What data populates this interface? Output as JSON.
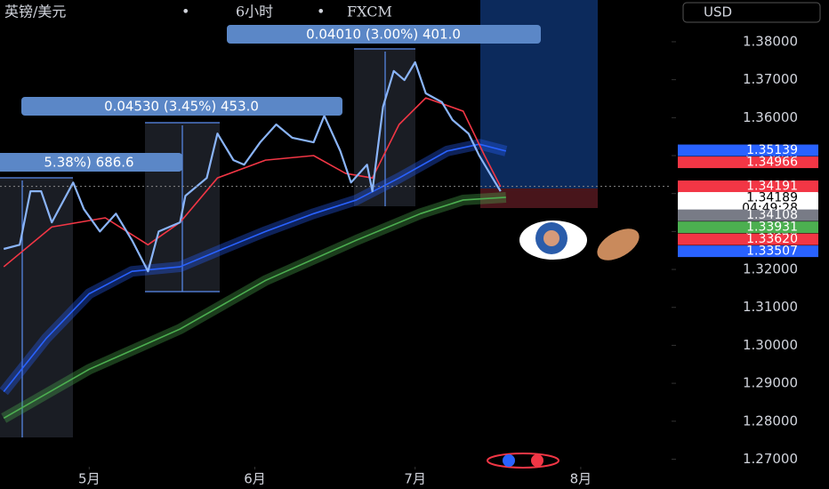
{
  "header": {
    "title": [
      "英镑/美元",
      "6小时",
      "FXCM"
    ],
    "separator": "•",
    "currency": "USD"
  },
  "chart_data": {
    "type": "line",
    "xlim": [
      -16.7,
      109
    ],
    "ylim": [
      1.268,
      1.391
    ],
    "xticks": [
      {
        "value": 0,
        "label": "5月"
      },
      {
        "value": 31,
        "label": "6月"
      },
      {
        "value": 61,
        "label": "7月"
      },
      {
        "value": 92,
        "label": "8月"
      }
    ],
    "yticks": [
      {
        "value": 1.27,
        "label": "1.27000"
      },
      {
        "value": 1.28,
        "label": "1.28000"
      },
      {
        "value": 1.29,
        "label": "1.29000"
      },
      {
        "value": 1.3,
        "label": "1.30000"
      },
      {
        "value": 1.31,
        "label": "1.31000"
      },
      {
        "value": 1.32,
        "label": "1.32000"
      },
      {
        "value": 1.33,
        "label": "1.33000"
      },
      {
        "value": 1.34,
        "label": "1.34000"
      },
      {
        "value": 1.35,
        "label": "1.35000"
      },
      {
        "value": 1.36,
        "label": "1.36000"
      },
      {
        "value": 1.37,
        "label": "1.37000"
      },
      {
        "value": 1.38,
        "label": "1.38000"
      }
    ],
    "series": [
      {
        "color": "#4caf50",
        "band": true,
        "x": [
          -16,
          0,
          17,
          33,
          50,
          62,
          70,
          78
        ],
        "values": [
          1.2808,
          1.2937,
          1.3043,
          1.3171,
          1.3277,
          1.3347,
          1.3383,
          1.339
        ]
      },
      {
        "color": "#2962ff",
        "band": true,
        "x": [
          -16,
          -8,
          0,
          8,
          17,
          25,
          33,
          42,
          50,
          58,
          67,
          73,
          78
        ],
        "values": [
          1.2878,
          1.3019,
          1.3136,
          1.3195,
          1.3207,
          1.3254,
          1.33,
          1.3347,
          1.3383,
          1.3441,
          1.3512,
          1.353,
          1.3512
        ]
      },
      {
        "color": "#f23645",
        "x": [
          -16,
          -7,
          3,
          11,
          17,
          24,
          33,
          42,
          48,
          53,
          58,
          63,
          70,
          74,
          77
        ],
        "values": [
          1.3207,
          1.3312,
          1.3336,
          1.3265,
          1.3324,
          1.3441,
          1.3488,
          1.35,
          1.3453,
          1.3441,
          1.3582,
          1.3652,
          1.3617,
          1.35,
          1.3418
        ]
      },
      {
        "color": "#8ab4f8",
        "x": [
          -16,
          -13,
          -11,
          -9,
          -7,
          -3,
          -1,
          2,
          5,
          8,
          11,
          13,
          17,
          18,
          22,
          24,
          27,
          29,
          32,
          35,
          38,
          42,
          44,
          47,
          49,
          52,
          53,
          55,
          57,
          59,
          61,
          63,
          66,
          68,
          71,
          73,
          76,
          77
        ],
        "values": [
          1.3254,
          1.3265,
          1.3406,
          1.3406,
          1.3324,
          1.3429,
          1.3359,
          1.33,
          1.3347,
          1.3277,
          1.3195,
          1.33,
          1.3324,
          1.3394,
          1.3441,
          1.3558,
          1.3488,
          1.3476,
          1.3535,
          1.3582,
          1.3547,
          1.3535,
          1.3605,
          1.3512,
          1.3429,
          1.3476,
          1.3406,
          1.3629,
          1.3723,
          1.3699,
          1.3746,
          1.3664,
          1.3641,
          1.3594,
          1.3558,
          1.35,
          1.3429,
          1.3406
        ]
      }
    ],
    "last_price": 1.34189,
    "countdown": "04:49:28",
    "price_labels": [
      {
        "value": 1.35139,
        "label": "1.35139",
        "color": "#2962ff"
      },
      {
        "value": 1.34966,
        "label": "1.34966",
        "color": "#f23645"
      },
      {
        "value": 1.34191,
        "label": "1.34191",
        "color": "#f23645"
      },
      {
        "value": 1.34108,
        "label": "1.34108",
        "color": "#787b86"
      },
      {
        "value": 1.33931,
        "label": "1.33931",
        "color": "#4caf50"
      },
      {
        "value": 1.3362,
        "label": "1.33620",
        "color": "#f23645"
      },
      {
        "value": 1.33507,
        "label": "1.33507",
        "color": "#2962ff"
      }
    ],
    "measurements": [
      "0.04010 (3.00%) 401.0",
      "0.04530 (3.45%) 453.0",
      "5.38%) 686.6"
    ]
  }
}
